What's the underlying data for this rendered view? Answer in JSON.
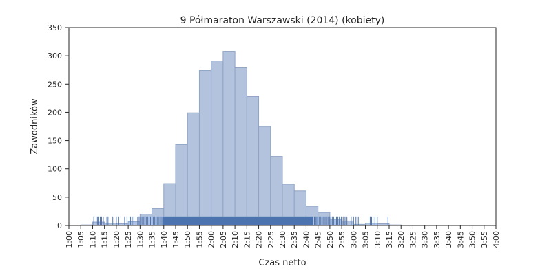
{
  "chart_data": {
    "type": "bar",
    "title": "9 Półmaraton Warszawski (2014) (kobiety)",
    "xlabel": "Czas netto",
    "ylabel": "Zawodników",
    "xlim": [
      60,
      240
    ],
    "ylim": [
      0,
      350
    ],
    "x_tick_step_minutes": 5,
    "x_tick_labels": [
      "1:00",
      "1:05",
      "1:10",
      "1:15",
      "1:20",
      "1:25",
      "1:30",
      "1:35",
      "1:40",
      "1:45",
      "1:50",
      "1:55",
      "2:00",
      "2:05",
      "2:10",
      "2:15",
      "2:20",
      "2:25",
      "2:30",
      "2:35",
      "2:40",
      "2:45",
      "2:50",
      "2:55",
      "3:00",
      "3:05",
      "3:10",
      "3:15",
      "3:20",
      "3:25",
      "3:30",
      "3:35",
      "3:40",
      "3:45",
      "3:50",
      "3:55",
      "4:00"
    ],
    "y_ticks": [
      0,
      50,
      100,
      150,
      200,
      250,
      300,
      350
    ],
    "bin_width_minutes": 5,
    "bins": [
      {
        "start": 60,
        "value": 0
      },
      {
        "start": 65,
        "value": 1
      },
      {
        "start": 70,
        "value": 6
      },
      {
        "start": 75,
        "value": 4
      },
      {
        "start": 80,
        "value": 3
      },
      {
        "start": 85,
        "value": 7
      },
      {
        "start": 90,
        "value": 20
      },
      {
        "start": 95,
        "value": 30
      },
      {
        "start": 100,
        "value": 74
      },
      {
        "start": 105,
        "value": 143
      },
      {
        "start": 110,
        "value": 199
      },
      {
        "start": 115,
        "value": 274
      },
      {
        "start": 120,
        "value": 291
      },
      {
        "start": 125,
        "value": 308
      },
      {
        "start": 130,
        "value": 279
      },
      {
        "start": 135,
        "value": 228
      },
      {
        "start": 140,
        "value": 175
      },
      {
        "start": 145,
        "value": 122
      },
      {
        "start": 150,
        "value": 73
      },
      {
        "start": 155,
        "value": 61
      },
      {
        "start": 160,
        "value": 34
      },
      {
        "start": 165,
        "value": 23
      },
      {
        "start": 170,
        "value": 11
      },
      {
        "start": 175,
        "value": 8
      },
      {
        "start": 180,
        "value": 2
      },
      {
        "start": 185,
        "value": 4
      },
      {
        "start": 190,
        "value": 3
      },
      {
        "start": 195,
        "value": 1
      },
      {
        "start": 200,
        "value": 0
      },
      {
        "start": 205,
        "value": 0
      },
      {
        "start": 210,
        "value": 0
      },
      {
        "start": 215,
        "value": 0
      },
      {
        "start": 220,
        "value": 0
      },
      {
        "start": 225,
        "value": 0
      },
      {
        "start": 230,
        "value": 0
      },
      {
        "start": 235,
        "value": 0
      }
    ],
    "rug_times_minutes": [
      70.5,
      72,
      72.6,
      73.2,
      73.8,
      74.5,
      76,
      76.5,
      78.5,
      80,
      81,
      83.5,
      84.5,
      86,
      86.7,
      87.4,
      89,
      89.6,
      90.2,
      90.8,
      91.4,
      92,
      92.6,
      93.2,
      93.8,
      94.4,
      95,
      95.6,
      96.2,
      96.8,
      97.4,
      98,
      98.6,
      99.2,
      163.5,
      164,
      164.5,
      165,
      165.6,
      166.2,
      166.8,
      167.4,
      168,
      168.6,
      169.2,
      169.8,
      170.4,
      171,
      171.6,
      172.2,
      172.8,
      173.4,
      174,
      174.8,
      175.6,
      176.4,
      177.2,
      179,
      180,
      181,
      182,
      187,
      187.6,
      188.2,
      189,
      190,
      194.5
    ],
    "rug_dense_range_minutes": [
      99.5,
      163
    ],
    "rug_height_value": 16,
    "colors": {
      "bar_fill": "#b3c3de",
      "bar_stroke": "#8fa3c4",
      "rug": "#4c72b0",
      "axis": "#262626"
    },
    "grid": false,
    "legend": "none"
  }
}
